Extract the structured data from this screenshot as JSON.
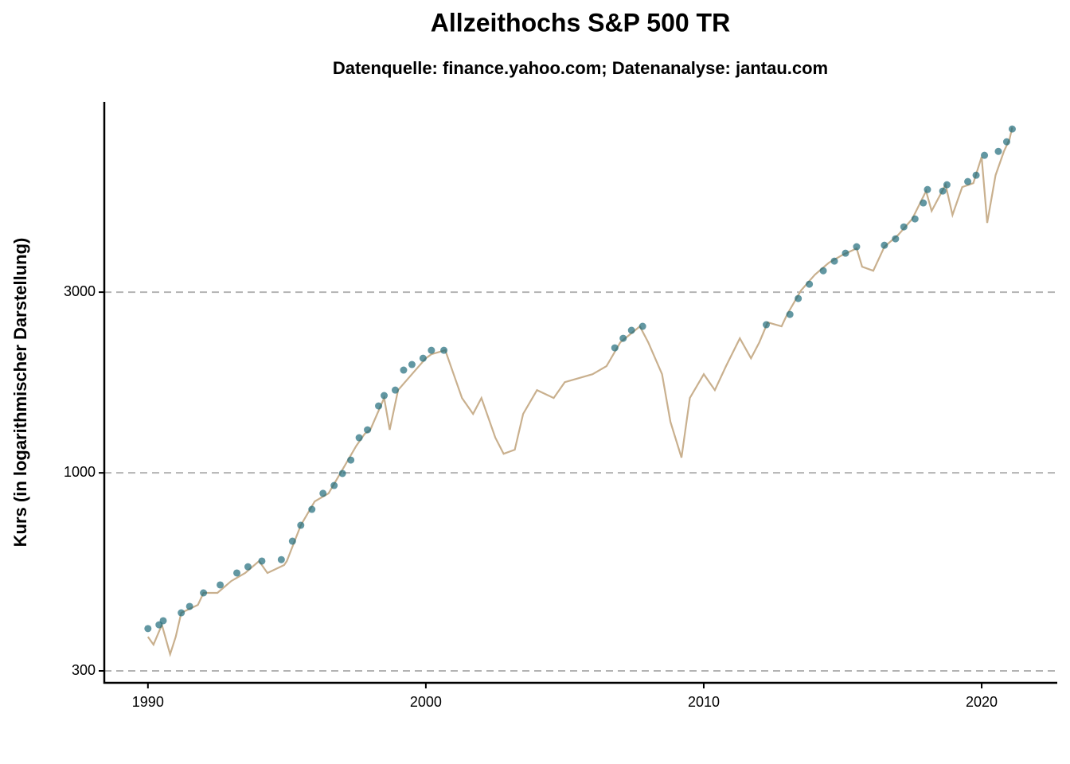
{
  "chart_data": {
    "type": "line",
    "title": "Allzeithochs S&P 500 TR",
    "subtitle": "Datenquelle: finance.yahoo.com; Datenanalyse: jantau.com",
    "y_label": "Kurs (in logarithmischer Darstellung)",
    "log_scale": true,
    "grid": true,
    "xlim": [
      1988.43,
      2022.72
    ],
    "ylim": [
      279,
      9540
    ],
    "xticks": [
      1990,
      2000,
      2010,
      2020
    ],
    "yticks": [
      300,
      1000,
      3000
    ],
    "line": {
      "color": "#c9b08e",
      "x": [
        1990.0,
        1990.2,
        1990.5,
        1990.8,
        1991.0,
        1991.2,
        1991.8,
        1992.0,
        1992.5,
        1993.0,
        1993.5,
        1994.0,
        1994.3,
        1994.9,
        1995.0,
        1995.5,
        1996.0,
        1996.5,
        1997.0,
        1997.5,
        1997.8,
        1998.0,
        1998.5,
        1998.7,
        1999.0,
        1999.5,
        2000.0,
        2000.2,
        2000.7,
        2001.0,
        2001.3,
        2001.7,
        2002.0,
        2002.5,
        2002.8,
        2003.2,
        2003.5,
        2004.0,
        2004.6,
        2005.0,
        2006.0,
        2006.5,
        2007.0,
        2007.7,
        2008.0,
        2008.5,
        2008.8,
        2009.2,
        2009.5,
        2010.0,
        2010.4,
        2010.8,
        2011.3,
        2011.7,
        2012.0,
        2012.3,
        2012.8,
        2013.0,
        2013.5,
        2014.0,
        2014.5,
        2015.0,
        2015.5,
        2015.7,
        2016.1,
        2016.5,
        2017.0,
        2017.5,
        2018.0,
        2018.2,
        2018.7,
        2018.95,
        2019.3,
        2019.7,
        2020.0,
        2020.2,
        2020.5,
        2020.8,
        2021.0,
        2021.1
      ],
      "values": [
        369,
        352,
        397,
        332,
        369,
        427,
        448,
        482,
        482,
        518,
        544,
        585,
        544,
        571,
        585,
        727,
        841,
        883,
        1020,
        1179,
        1268,
        1299,
        1576,
        1299,
        1654,
        1822,
        2007,
        2057,
        2107,
        1822,
        1576,
        1431,
        1576,
        1238,
        1123,
        1151,
        1431,
        1654,
        1576,
        1736,
        1822,
        1913,
        2212,
        2437,
        2212,
        1822,
        1364,
        1097,
        1576,
        1822,
        1654,
        1913,
        2266,
        2007,
        2212,
        2496,
        2437,
        2620,
        3030,
        3337,
        3587,
        3765,
        3915,
        3501,
        3417,
        3954,
        4251,
        4683,
        5547,
        4914,
        5764,
        4797,
        5683,
        5821,
        6829,
        4570,
        6108,
        7061,
        7593,
        8166
      ]
    },
    "highs": {
      "color": "#1f6b7a",
      "x": [
        1990.0,
        1990.4,
        1990.55,
        1991.2,
        1991.5,
        1992.0,
        1992.6,
        1993.2,
        1993.6,
        1994.1,
        1994.8,
        1995.2,
        1995.5,
        1995.9,
        1996.3,
        1996.7,
        1997.0,
        1997.3,
        1997.6,
        1997.9,
        1998.3,
        1998.5,
        1998.9,
        1999.2,
        1999.5,
        1999.9,
        2000.2,
        2000.65,
        2006.8,
        2007.1,
        2007.4,
        2007.8,
        2012.25,
        2013.1,
        2013.4,
        2013.8,
        2014.3,
        2014.7,
        2015.1,
        2015.5,
        2016.5,
        2016.9,
        2017.2,
        2017.6,
        2017.9,
        2018.05,
        2018.6,
        2018.75,
        2019.5,
        2019.8,
        2020.1,
        2020.6,
        2020.9,
        2021.1
      ],
      "values": [
        388,
        397,
        407,
        427,
        444,
        482,
        506,
        544,
        565,
        585,
        590,
        660,
        727,
        801,
        883,
        926,
        996,
        1081,
        1238,
        1299,
        1502,
        1600,
        1654,
        1868,
        1932,
        2007,
        2107,
        2107,
        2138,
        2266,
        2379,
        2437,
        2461,
        2620,
        2886,
        3149,
        3417,
        3623,
        3802,
        3954,
        3990,
        4149,
        4461,
        4683,
        5160,
        5598,
        5547,
        5764,
        5877,
        6108,
        6893,
        7061,
        7484,
        8088
      ]
    }
  }
}
